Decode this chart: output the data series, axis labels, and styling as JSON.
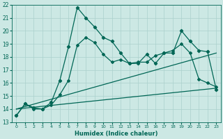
{
  "xlabel": "Humidex (Indice chaleur)",
  "x": [
    0,
    1,
    2,
    3,
    4,
    5,
    6,
    7,
    8,
    9,
    10,
    11,
    12,
    13,
    14,
    15,
    16,
    17,
    18,
    19,
    20,
    21,
    22,
    23
  ],
  "line1": [
    13.5,
    14.4,
    14.1,
    14.0,
    14.5,
    16.2,
    18.8,
    21.8,
    21.0,
    20.3,
    19.5,
    19.2,
    18.3,
    17.5,
    17.5,
    18.2,
    17.5,
    18.3,
    18.3,
    20.0,
    19.2,
    18.5,
    18.4,
    15.5
  ],
  "line2": [
    13.5,
    14.4,
    14.0,
    14.0,
    14.3,
    15.1,
    16.2,
    18.9,
    19.5,
    19.1,
    18.2,
    17.6,
    17.8,
    17.5,
    17.6,
    17.6,
    18.1,
    18.3,
    18.5,
    19.0,
    18.3,
    16.3,
    16.0,
    15.7
  ],
  "line3_x": [
    0,
    23
  ],
  "line3_y": [
    14.0,
    18.3
  ],
  "line4_x": [
    0,
    23
  ],
  "line4_y": [
    14.0,
    15.6
  ],
  "bg_color": "#cce8e4",
  "grid_color": "#aad0cc",
  "line_color": "#006655",
  "ylim": [
    13,
    22
  ],
  "yticks": [
    13,
    14,
    15,
    16,
    17,
    18,
    19,
    20,
    21,
    22
  ],
  "xticks": [
    0,
    1,
    2,
    3,
    4,
    5,
    6,
    7,
    8,
    9,
    10,
    11,
    12,
    13,
    14,
    15,
    16,
    17,
    18,
    19,
    20,
    21,
    22,
    23
  ]
}
